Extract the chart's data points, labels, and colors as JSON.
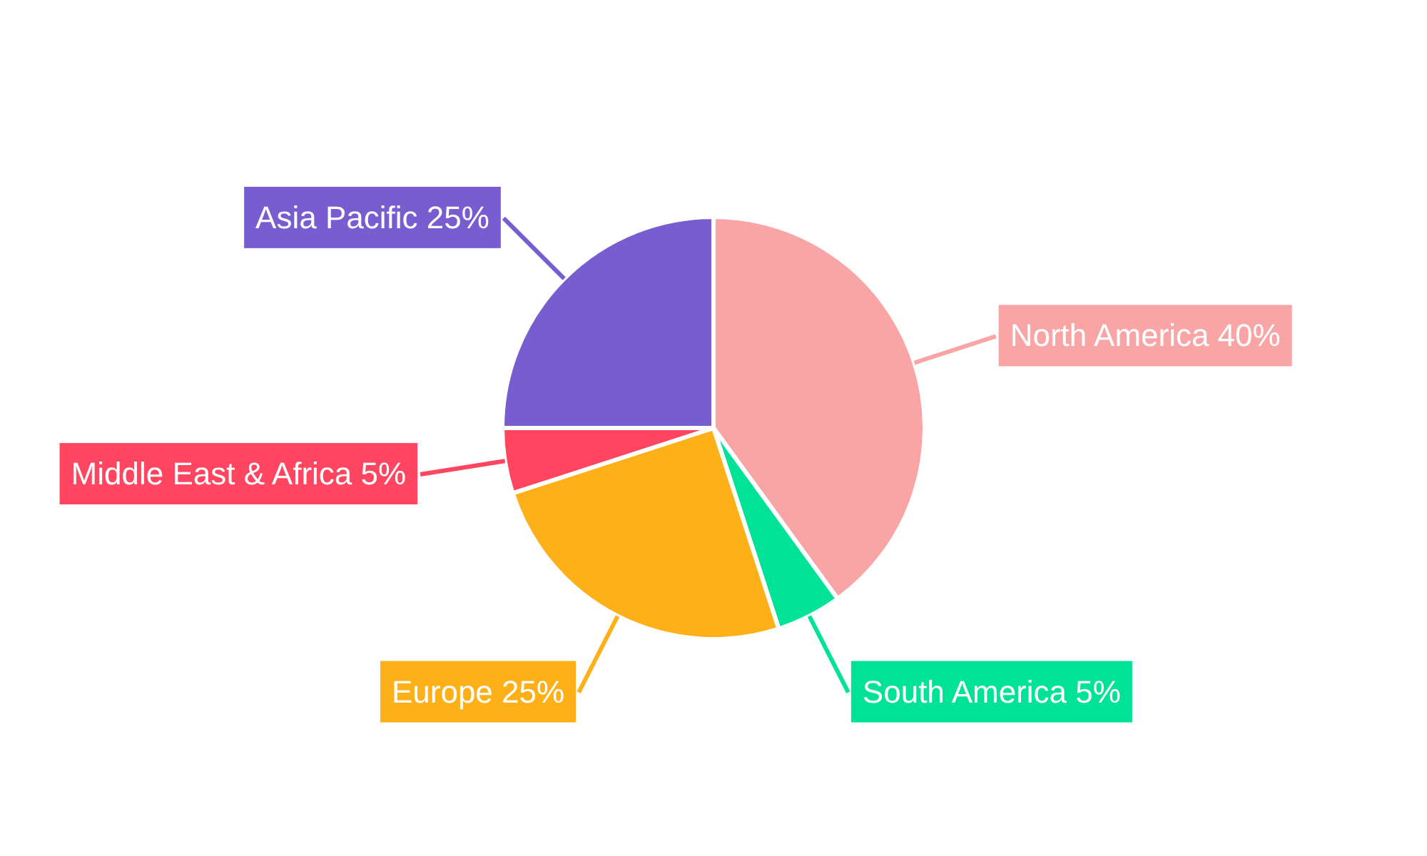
{
  "chart_data": {
    "type": "pie",
    "categories": [
      "North America",
      "South America",
      "Europe",
      "Middle East & Africa",
      "Asia Pacific"
    ],
    "values": [
      40,
      5,
      25,
      5,
      25
    ],
    "colors": [
      "#f9a5a6",
      "#00e396",
      "#feb019",
      "#ff4560",
      "#775dd0"
    ],
    "value_labels": [
      "40%",
      "5%",
      "25%",
      "5%",
      "25%"
    ]
  }
}
